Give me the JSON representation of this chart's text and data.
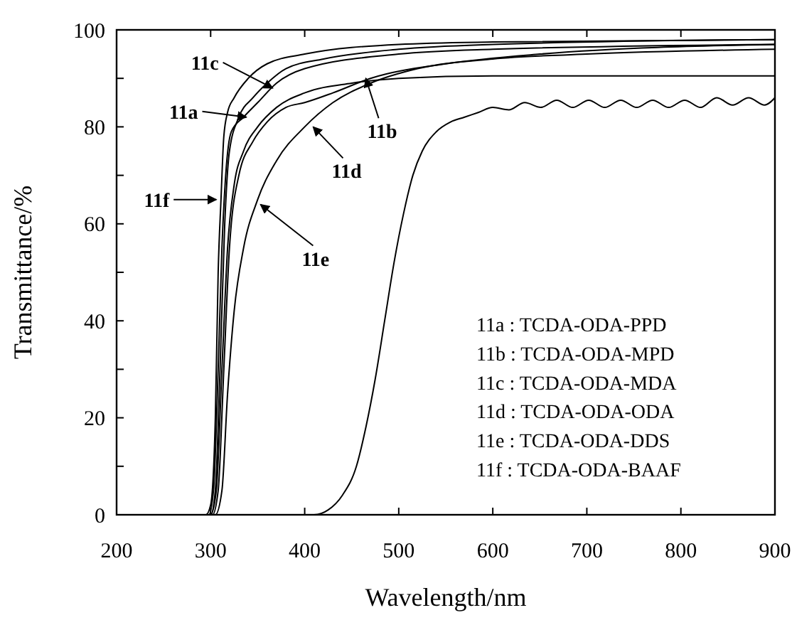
{
  "chart_data": {
    "type": "line",
    "xlabel": "Wavelength/nm",
    "ylabel": "Transmittance/%",
    "xlim": [
      200,
      900
    ],
    "ylim": [
      0,
      100
    ],
    "xticks": [
      200,
      300,
      400,
      500,
      600,
      700,
      800,
      900
    ],
    "yticks": [
      0,
      {
        "value": 10,
        "label": null
      },
      20,
      {
        "value": 30,
        "label": null
      },
      40,
      {
        "value": 50,
        "label": null
      },
      60,
      {
        "value": 70,
        "label": null
      },
      80,
      {
        "value": 90,
        "label": null
      },
      100
    ],
    "grid": false,
    "marker": "none",
    "line_style": "solid",
    "series": [
      {
        "color": "#000000",
        "x": [
          200,
          295,
          300,
          305,
          308,
          311,
          314,
          318,
          325,
          340,
          360,
          400,
          500,
          600,
          900
        ],
        "values": [
          0,
          0,
          2,
          20,
          50,
          65,
          78,
          83,
          86,
          90,
          93,
          95,
          97,
          97.5,
          98
        ]
      },
      {
        "color": "#000000",
        "x": [
          200,
          298,
          303,
          308,
          312,
          316,
          322,
          335,
          350,
          370,
          400,
          500,
          600,
          900
        ],
        "values": [
          0,
          0,
          5,
          30,
          55,
          70,
          79,
          82,
          85,
          89,
          92,
          95,
          96,
          97
        ]
      },
      {
        "color": "#000000",
        "x": [
          200,
          300,
          305,
          310,
          315,
          320,
          330,
          345,
          360,
          380,
          420,
          500,
          600,
          900
        ],
        "values": [
          0,
          0,
          5,
          30,
          60,
          75,
          82,
          86,
          89,
          92,
          94,
          96,
          97,
          98
        ]
      },
      {
        "color": "#000000",
        "x": [
          200,
          300,
          306,
          312,
          318,
          325,
          335,
          350,
          370,
          400,
          450,
          500,
          600,
          900
        ],
        "values": [
          0,
          0,
          5,
          30,
          55,
          68,
          75,
          80,
          84,
          87,
          89,
          90,
          90.5,
          90.5
        ]
      },
      {
        "color": "#000000",
        "x": [
          200,
          302,
          308,
          314,
          320,
          330,
          345,
          360,
          380,
          400,
          430,
          470,
          550,
          650,
          900
        ],
        "values": [
          0,
          0,
          5,
          30,
          55,
          70,
          77,
          81,
          84,
          85,
          87,
          90,
          93,
          95,
          97
        ]
      },
      {
        "color": "#000000",
        "x": [
          200,
          305,
          312,
          318,
          325,
          335,
          350,
          370,
          400,
          430,
          470,
          520,
          600,
          700,
          900
        ],
        "values": [
          0,
          0,
          5,
          25,
          42,
          55,
          65,
          73,
          80,
          85,
          89,
          92,
          94,
          95,
          96
        ]
      },
      {
        "color": "#000000",
        "x": [
          200,
          410,
          425,
          440,
          455,
          465,
          475,
          485,
          495,
          505,
          515,
          525,
          540,
          555,
          570,
          585,
          600,
          617,
          634,
          651,
          668,
          685,
          702,
          719,
          736,
          753,
          770,
          787,
          804,
          821,
          838,
          855,
          872,
          889,
          900
        ],
        "values": [
          0,
          0,
          1,
          4,
          10,
          18,
          28,
          40,
          52,
          62,
          70,
          75,
          79,
          81,
          82,
          83,
          84,
          83.5,
          85,
          84,
          85.5,
          84,
          85.5,
          84,
          85.5,
          84,
          85.5,
          84,
          85.5,
          84,
          86,
          84.5,
          86,
          84.5,
          86
        ]
      }
    ],
    "annotations": [
      {
        "text": "11c",
        "x": 366,
        "y": 88
      },
      {
        "text": "11a",
        "x": 338,
        "y": 82
      },
      {
        "text": "11f",
        "x": 306,
        "y": 65
      },
      {
        "text": "11e",
        "x": 353,
        "y": 64
      },
      {
        "text": "11d",
        "x": 409,
        "y": 80
      },
      {
        "text": "11b",
        "x": 465,
        "y": 90
      },
      "11a : TCDA-ODA-PPD",
      "11b : TCDA-ODA-MPD",
      "11c : TCDA-ODA-MDA",
      "11d : TCDA-ODA-ODA",
      "11e : TCDA-ODA-DDS",
      "11f : TCDA-ODA-BAAF"
    ]
  }
}
